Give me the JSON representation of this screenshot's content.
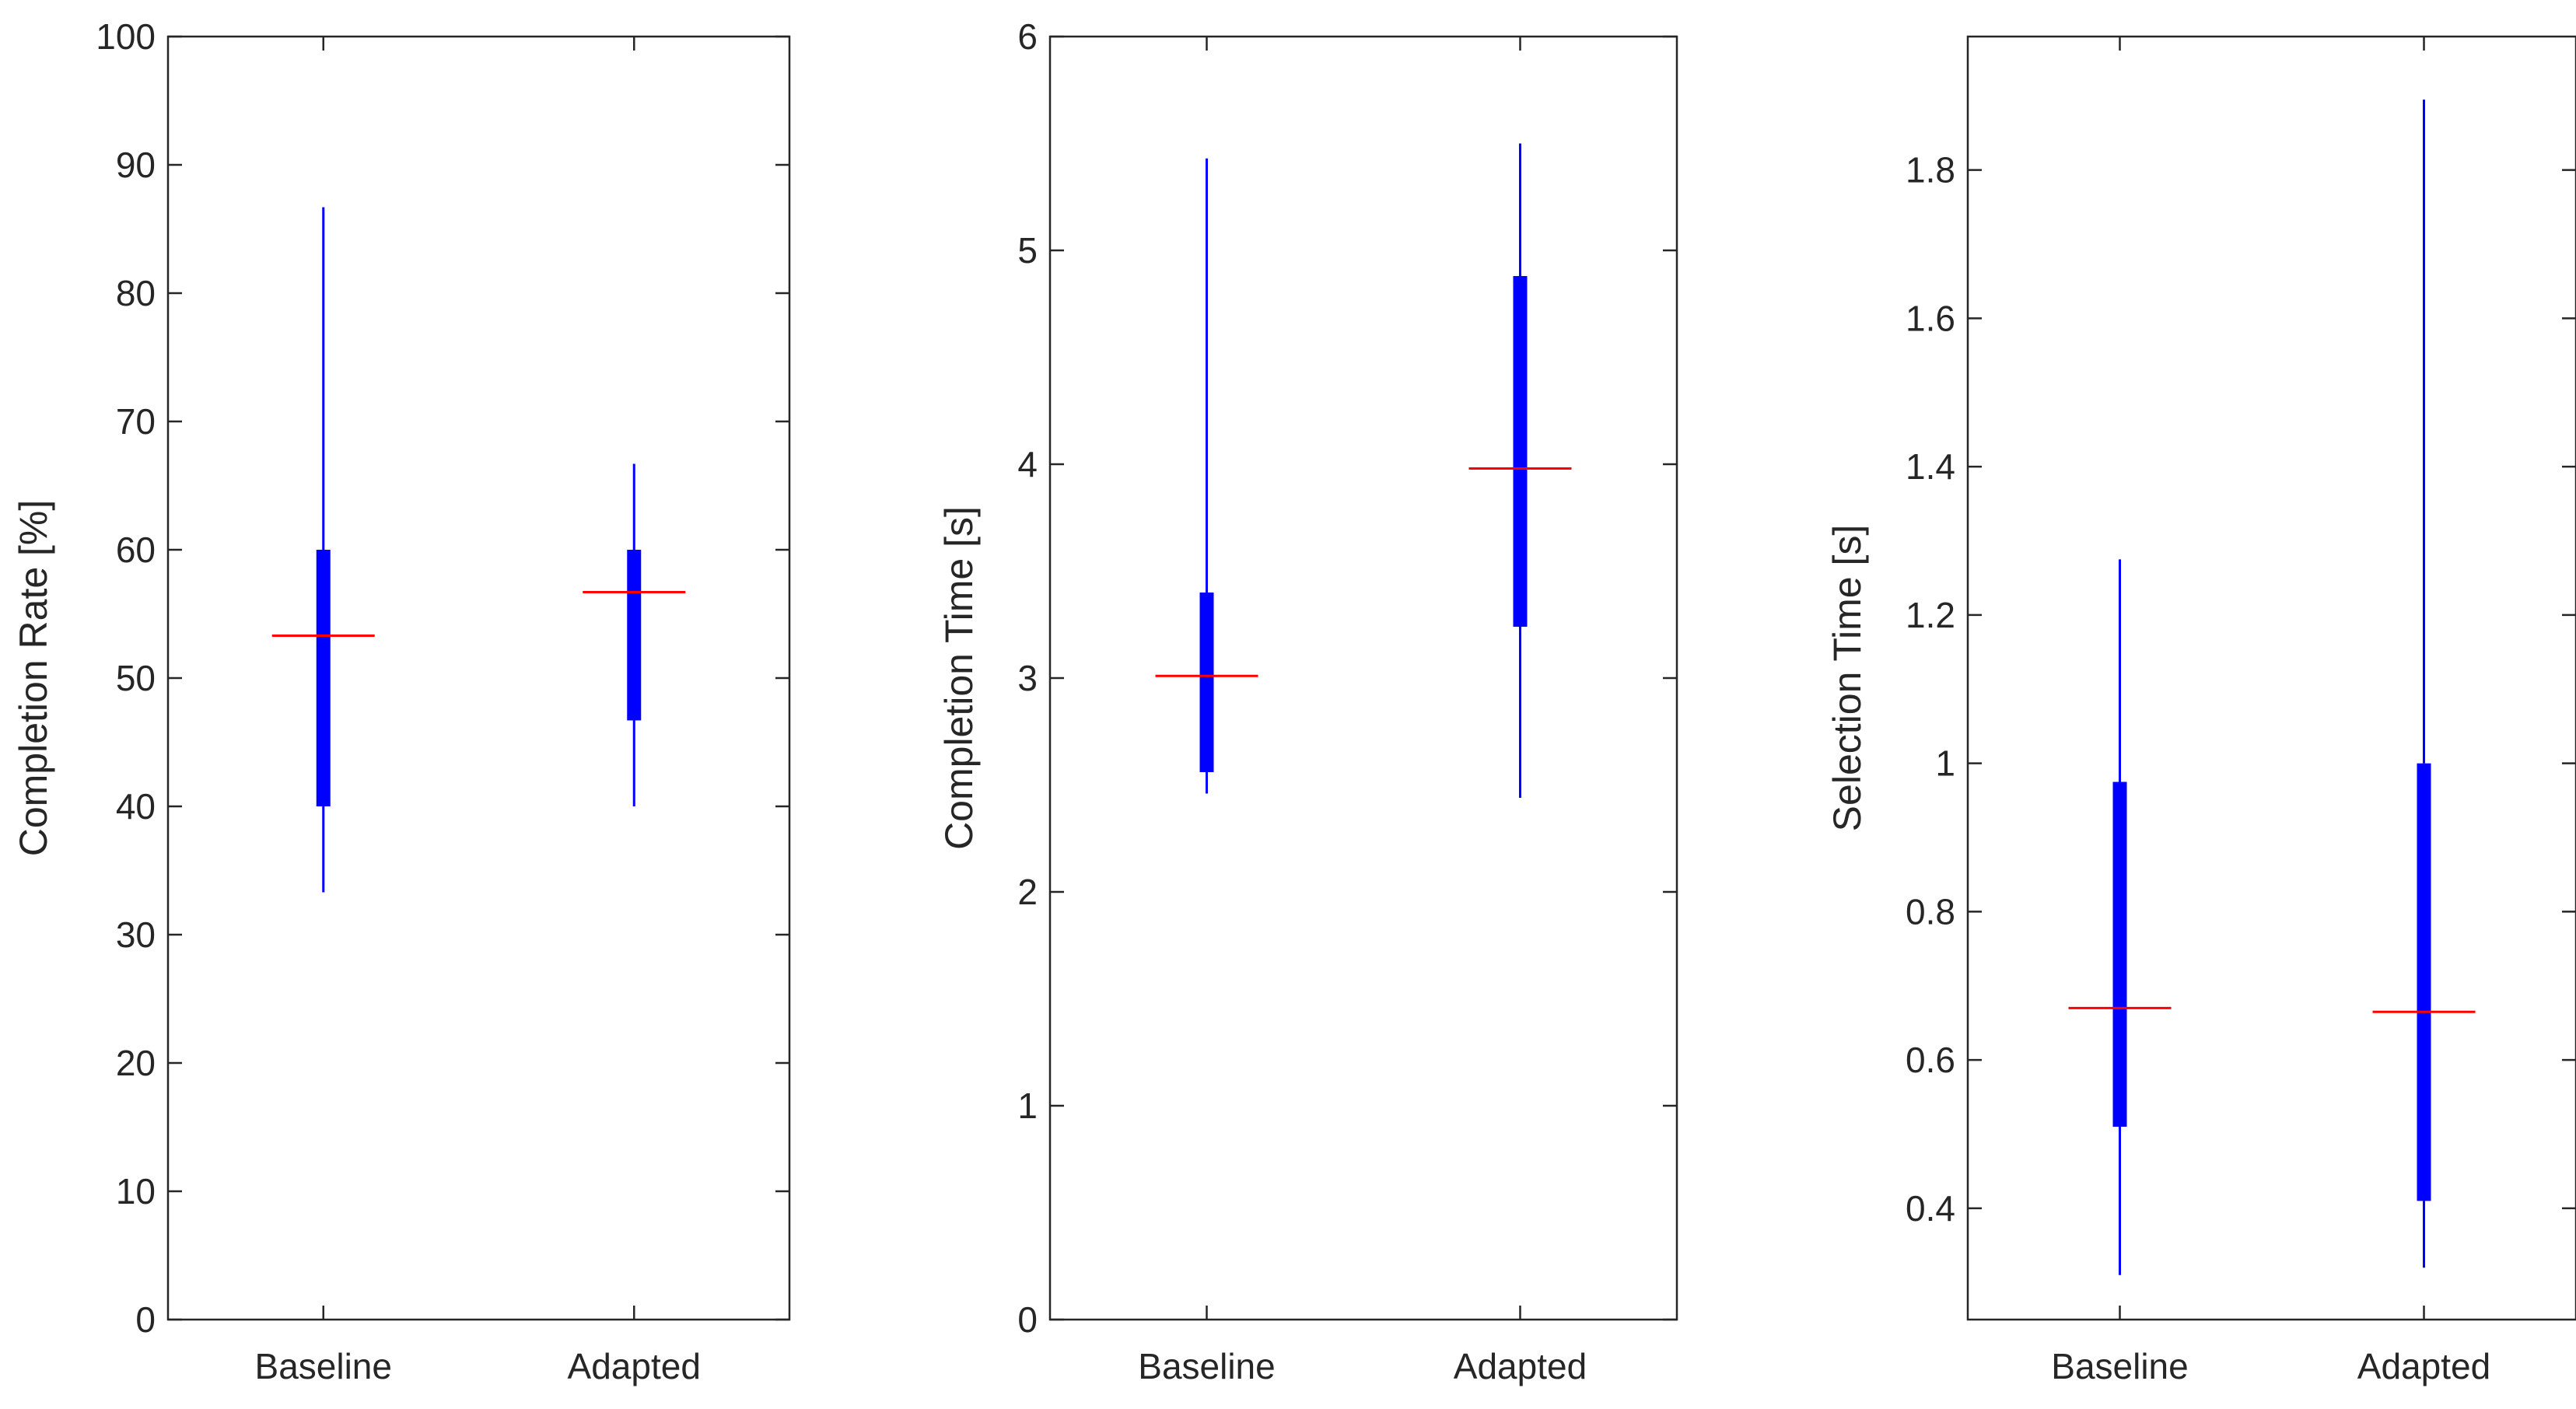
{
  "colors": {
    "box": "#0000ff",
    "median": "#ff0000",
    "axis": "#262626",
    "background": "#ffffff"
  },
  "chart_data": [
    {
      "type": "boxplot",
      "ylabel": "Completion Rate [%]",
      "xlabel": "",
      "categories": [
        "Baseline",
        "Adapted"
      ],
      "ylim": [
        0,
        100
      ],
      "yticks": [
        0,
        10,
        20,
        30,
        40,
        50,
        60,
        70,
        80,
        90,
        100
      ],
      "ytick_labels": [
        "0",
        "10",
        "20",
        "30",
        "40",
        "50",
        "60",
        "70",
        "80",
        "90",
        "100"
      ],
      "boxes": [
        {
          "name": "Baseline",
          "whisker_low": 33.3,
          "q1": 40.0,
          "median": 53.3,
          "q3": 60.0,
          "whisker_high": 86.7
        },
        {
          "name": "Adapted",
          "whisker_low": 40.0,
          "q1": 46.7,
          "median": 56.7,
          "q3": 60.0,
          "whisker_high": 66.7
        }
      ]
    },
    {
      "type": "boxplot",
      "ylabel": "Completion Time [s]",
      "xlabel": "",
      "categories": [
        "Baseline",
        "Adapted"
      ],
      "ylim": [
        0,
        6
      ],
      "yticks": [
        0,
        1,
        2,
        3,
        4,
        5,
        6
      ],
      "ytick_labels": [
        "0",
        "1",
        "2",
        "3",
        "4",
        "5",
        "6"
      ],
      "boxes": [
        {
          "name": "Baseline",
          "whisker_low": 2.46,
          "q1": 2.56,
          "median": 3.01,
          "q3": 3.4,
          "whisker_high": 5.43
        },
        {
          "name": "Adapted",
          "whisker_low": 2.44,
          "q1": 3.24,
          "median": 3.98,
          "q3": 4.88,
          "whisker_high": 5.5
        }
      ]
    },
    {
      "type": "boxplot",
      "ylabel": "Selection Time [s]",
      "xlabel": "",
      "categories": [
        "Baseline",
        "Adapted"
      ],
      "ylim": [
        0.25,
        1.98
      ],
      "yticks": [
        0.4,
        0.6,
        0.8,
        1.0,
        1.2,
        1.4,
        1.6,
        1.8
      ],
      "ytick_labels": [
        "0.4",
        "0.6",
        "0.8",
        "1",
        "1.2",
        "1.4",
        "1.6",
        "1.8"
      ],
      "boxes": [
        {
          "name": "Baseline",
          "whisker_low": 0.31,
          "q1": 0.51,
          "median": 0.67,
          "q3": 0.975,
          "whisker_high": 1.275
        },
        {
          "name": "Adapted",
          "whisker_low": 0.32,
          "q1": 0.41,
          "median": 0.665,
          "q3": 1.0,
          "whisker_high": 1.895
        }
      ]
    }
  ]
}
